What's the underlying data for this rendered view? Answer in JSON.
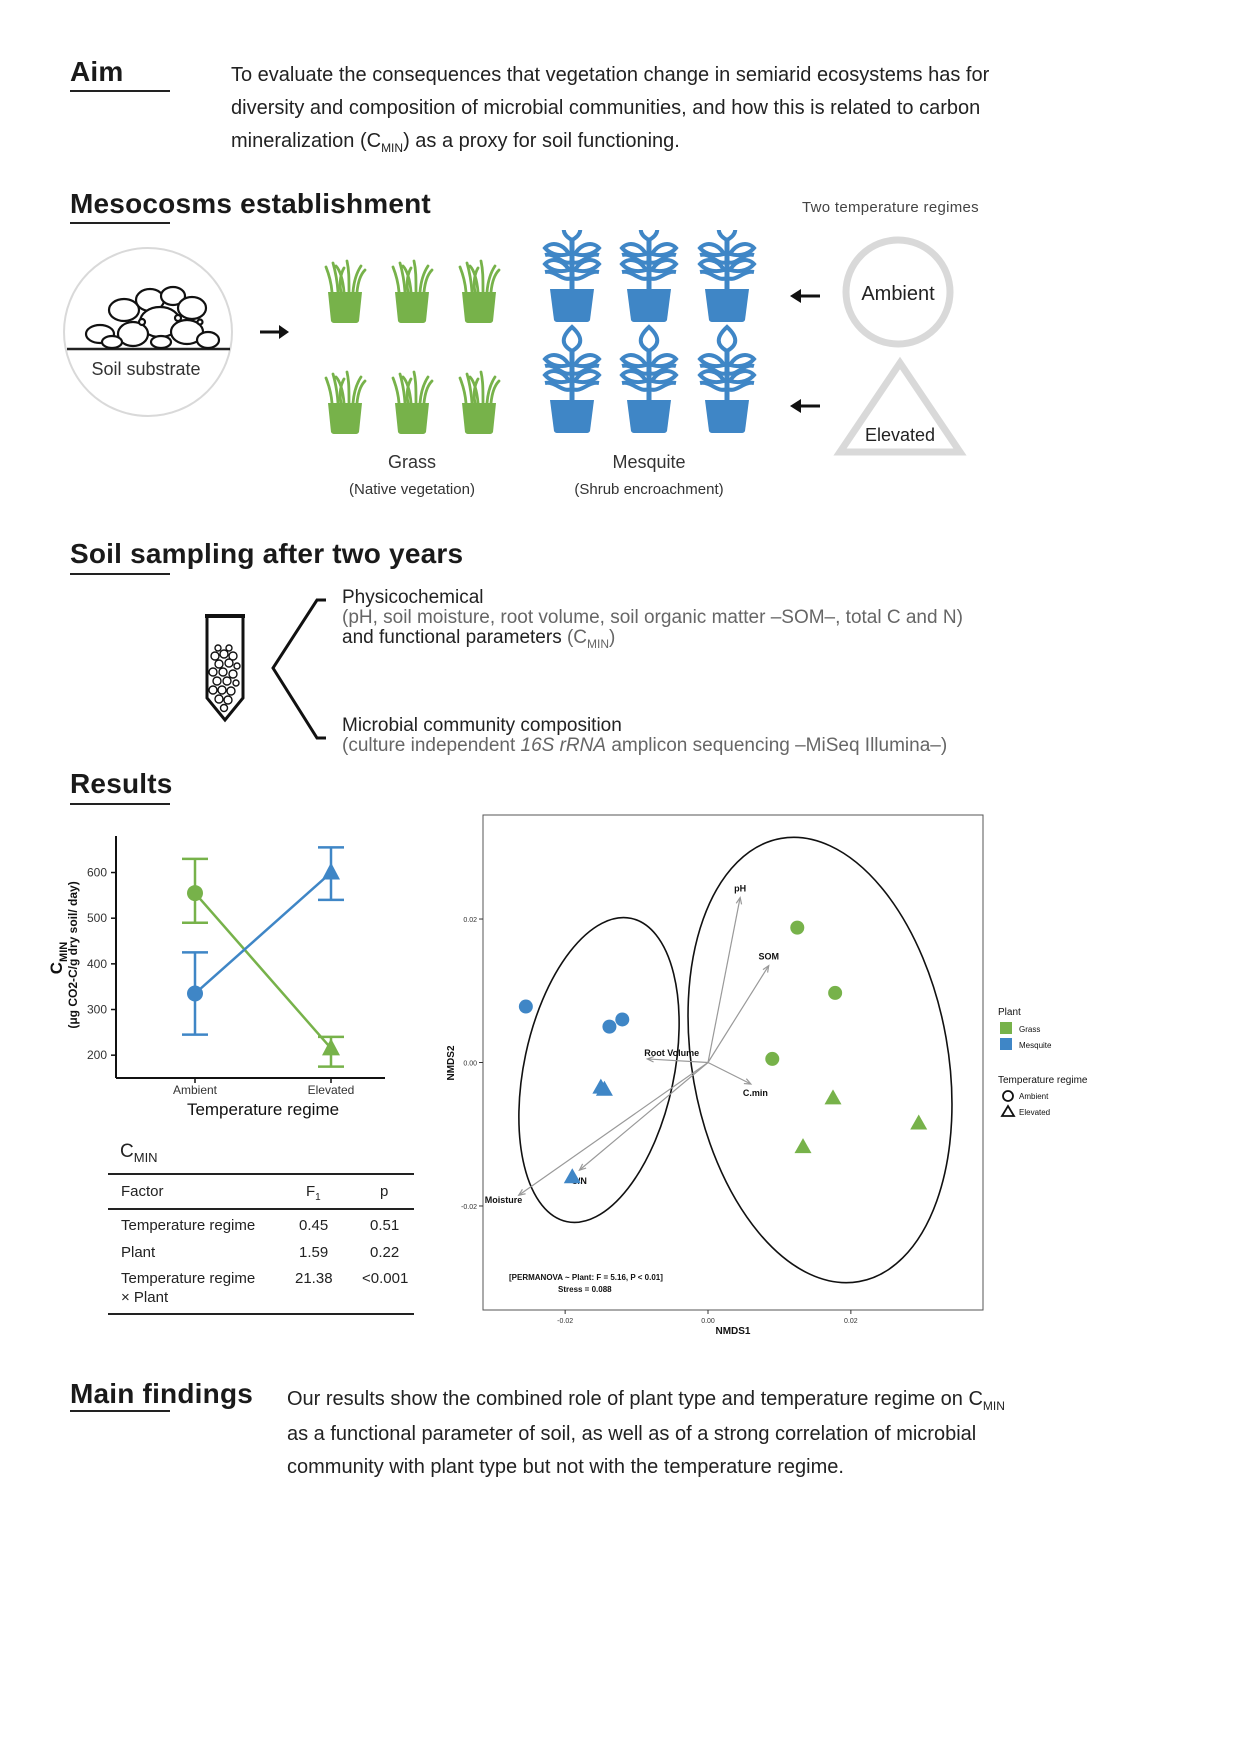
{
  "aim": {
    "heading": "Aim",
    "text_1": "To evaluate the consequences that vegetation change in semiarid ecosystems has for",
    "text_2": "diversity and composition of microbial communities, and how this is related to carbon",
    "text_3a": "mineralization (C",
    "text_3sub": "MIN",
    "text_3b": ") as a proxy for soil functioning."
  },
  "mesocosms": {
    "heading": "Mesocosms establishment",
    "temp_title": "Two temperature regimes",
    "soil_label": "Soil substrate",
    "grass_label": "Grass",
    "grass_sub": "(Native vegetation)",
    "mesquite_label": "Mesquite",
    "mesquite_sub": "(Shrub encroachment)",
    "ambient_label": "Ambient",
    "elevated_label": "Elevated",
    "colors": {
      "grass": "#77b24a",
      "mesquite": "#3f86c6",
      "shape": "#d9d9d9"
    }
  },
  "sampling": {
    "heading": "Soil sampling after two years",
    "physico_title": "Physicochemical",
    "physico_detail": "(pH, soil moisture, root volume, soil organic matter –SOM–, total C and N)",
    "functional_a": "and functional parameters",
    "functional_b": "(C",
    "functional_sub": "MIN",
    "functional_c": ")",
    "microbial_title": "Microbial community composition",
    "microbial_a": "(culture independent ",
    "microbial_italic": "16S rRNA",
    "microbial_b": " amplicon sequencing –MiSeq Illumina–)"
  },
  "results": {
    "heading": "Results",
    "table": {
      "title": "C",
      "title_sub": "MIN",
      "headers": {
        "factor": "Factor",
        "f": "F",
        "f_sub": "1",
        "p": "p"
      },
      "rows": [
        {
          "factor": "Temperature regime",
          "f": "0.45",
          "p": "0.51"
        },
        {
          "factor": "Plant",
          "f": "1.59",
          "p": "0.22"
        },
        {
          "factor": "Temperature regime",
          "factor_2": "× Plant",
          "f": "21.38",
          "p": "<0.001"
        }
      ]
    }
  },
  "chart_data": [
    {
      "type": "line",
      "xlabel": "Temperature regime",
      "ylabel_main": "C",
      "ylabel_sub": "MIN",
      "ylabel_unit": "(μg CO2-C/g dry soil/ day)",
      "categories": [
        "Ambient",
        "Elevated"
      ],
      "yticks": [
        200,
        300,
        400,
        500,
        600
      ],
      "ylim": [
        150,
        680
      ],
      "series": [
        {
          "color": "#77b24a",
          "marker": "circle-to-triangle",
          "values": [
            555,
            215
          ],
          "err_low": [
            490,
            175
          ],
          "err_high": [
            630,
            240
          ]
        },
        {
          "color": "#3f86c6",
          "marker": "circle-to-triangle",
          "values": [
            335,
            600
          ],
          "err_low": [
            245,
            540
          ],
          "err_high": [
            425,
            655
          ]
        }
      ]
    },
    {
      "type": "scatter",
      "xlabel": "NMDS1",
      "ylabel": "NMDS2",
      "xticks": [
        -0.02,
        0.0,
        0.02
      ],
      "xtick_labels": [
        "-0.02",
        "0.00",
        "0.02"
      ],
      "yticks": [
        -0.02,
        0.0,
        0.02
      ],
      "ytick_labels": [
        "-0.02",
        "0.00",
        "0.02"
      ],
      "xlim": [
        -0.0315,
        0.0385
      ],
      "ylim": [
        -0.0345,
        0.0345
      ],
      "legend": {
        "plant_title": "Plant",
        "plant_items": [
          {
            "name": "Grass",
            "color": "#77b24a"
          },
          {
            "name": "Mesquite",
            "color": "#3f86c6"
          }
        ],
        "temp_title": "Temperature regime",
        "temp_items": [
          {
            "name": "Ambient",
            "shape": "circle"
          },
          {
            "name": "Elevated",
            "shape": "triangle"
          }
        ]
      },
      "annotation_1": "[PERMANOVA ~ Plant: F = 5.16, P < 0.01]",
      "annotation_2": "Stress = 0.088",
      "points": [
        {
          "plant": "Mesquite",
          "temp": "Ambient",
          "x": -0.0255,
          "y": 0.0078
        },
        {
          "plant": "Mesquite",
          "temp": "Ambient",
          "x": -0.0138,
          "y": 0.005
        },
        {
          "plant": "Mesquite",
          "temp": "Ambient",
          "x": -0.012,
          "y": 0.006
        },
        {
          "plant": "Mesquite",
          "temp": "Elevated",
          "x": -0.015,
          "y": -0.0035
        },
        {
          "plant": "Mesquite",
          "temp": "Elevated",
          "x": -0.0145,
          "y": -0.0038
        },
        {
          "plant": "Mesquite",
          "temp": "Elevated",
          "x": -0.019,
          "y": -0.016
        },
        {
          "plant": "Grass",
          "temp": "Ambient",
          "x": 0.0125,
          "y": 0.0188
        },
        {
          "plant": "Grass",
          "temp": "Ambient",
          "x": 0.0178,
          "y": 0.0097
        },
        {
          "plant": "Grass",
          "temp": "Ambient",
          "x": 0.009,
          "y": 0.0005
        },
        {
          "plant": "Grass",
          "temp": "Elevated",
          "x": 0.0175,
          "y": -0.005
        },
        {
          "plant": "Grass",
          "temp": "Elevated",
          "x": 0.0133,
          "y": -0.0118
        },
        {
          "plant": "Grass",
          "temp": "Elevated",
          "x": 0.0295,
          "y": -0.0085
        }
      ],
      "vectors": [
        {
          "name": "pH",
          "x": 0.0045,
          "y": 0.023
        },
        {
          "name": "SOM",
          "x": 0.0085,
          "y": 0.0135
        },
        {
          "name": "Root Volume",
          "x": -0.0085,
          "y": 0.0005
        },
        {
          "name": "C.min",
          "x": 0.006,
          "y": -0.003
        },
        {
          "name": "C/N",
          "x": -0.018,
          "y": -0.015
        },
        {
          "name": "Moisture",
          "x": -0.0265,
          "y": -0.0185
        }
      ]
    }
  ],
  "findings": {
    "heading": "Main findings",
    "text_1a": "Our results show the combined role of plant type and temperature regime on C",
    "text_1sub": "MIN",
    "text_2": "as a functional parameter of soil, as well as of a strong correlation of microbial",
    "text_3": "community with plant type but not with the temperature regime."
  }
}
